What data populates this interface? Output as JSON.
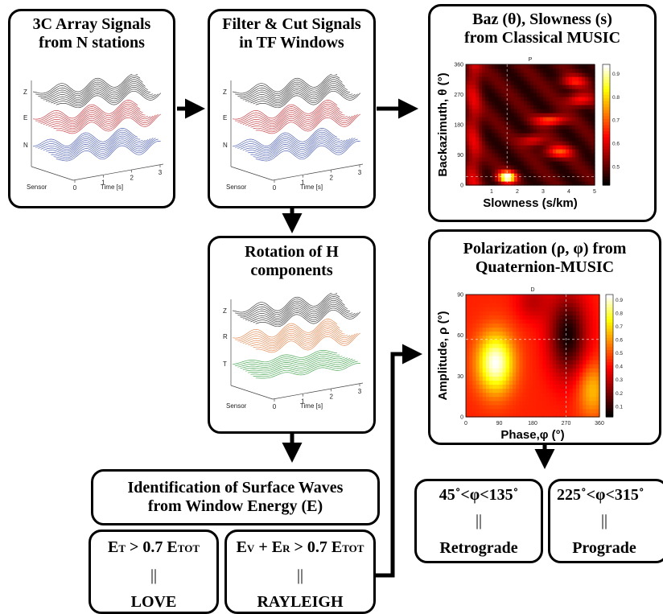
{
  "boxes": {
    "array": {
      "line1": "3C Array Signals",
      "line2": "from N stations"
    },
    "filter": {
      "line1": "Filter & Cut Signals",
      "line2": "in TF Windows"
    },
    "baz": {
      "line1": "Baz (θ), Slowness (s)",
      "line2": "from Classical MUSIC"
    },
    "rotation": {
      "line1": "Rotation of H",
      "line2": "components"
    },
    "polar": {
      "line1": "Polarization  (ρ, φ) from",
      "line2": "Quaternion-MUSIC"
    },
    "ident": {
      "line1": "Identification of Surface Waves",
      "line2": "from Window Energy (E)"
    },
    "love": {
      "cond_parts": [
        "E",
        "T",
        " > 0.7 E",
        "TOT"
      ],
      "sep": "||",
      "result": "LOVE"
    },
    "rayleigh": {
      "cond_parts": [
        "E",
        "V",
        " + E",
        "R",
        " > 0.7 E",
        "TOT"
      ],
      "sep": "||",
      "result": "RAYLEIGH"
    },
    "retro": {
      "range": "45˚<φ<135˚",
      "sep": "||",
      "result": "Retrograde"
    },
    "pro": {
      "range": "225˚<φ<315˚",
      "sep": "||",
      "result": "Prograde"
    }
  },
  "waveforms": {
    "array": {
      "channels": [
        "Z",
        "E",
        "N"
      ],
      "colors": [
        "#222222",
        "#c0262c",
        "#3a4fa8"
      ],
      "ylabel": "Sensor",
      "xlabel": "Time [s]",
      "xticks": [
        "0",
        "1",
        "2",
        "3"
      ]
    },
    "filter": {
      "channels": [
        "Z",
        "E",
        "N"
      ],
      "colors": [
        "#222222",
        "#c0262c",
        "#3a4fa8"
      ],
      "ylabel": "Sensor",
      "xlabel": "Time [s]",
      "xticks": [
        "0",
        "1",
        "2",
        "3"
      ]
    },
    "rotation": {
      "channels": [
        "Z",
        "R",
        "T"
      ],
      "colors": [
        "#222222",
        "#e07a3c",
        "#2e9a3a"
      ],
      "ylabel": "Sensor",
      "xlabel": "Time [s]",
      "xticks": [
        "0",
        "1",
        "2",
        "3"
      ]
    }
  },
  "chart_data": [
    {
      "type": "heatmap",
      "title": "P",
      "xlabel": "Slowness (s/km)",
      "ylabel": "Backazimuth, θ (°)",
      "xlim": [
        0,
        5
      ],
      "ylim": [
        0,
        360
      ],
      "xticks": [
        "1",
        "2",
        "3",
        "4",
        "5"
      ],
      "yticks": [
        "0",
        "90",
        "180",
        "270",
        "360"
      ],
      "colorbar_ticks": [
        "0.5",
        "0.6",
        "0.7",
        "0.8",
        "0.9"
      ],
      "colormap": "hot",
      "peak": {
        "x": 1.6,
        "y": 25
      }
    },
    {
      "type": "heatmap",
      "title": "D",
      "xlabel": "Phase,φ (°)",
      "ylabel": "Amplitude, ρ (°)",
      "xlim": [
        0,
        360
      ],
      "ylim": [
        0,
        90
      ],
      "xticks": [
        "0",
        "90",
        "180",
        "270",
        "360"
      ],
      "yticks": [
        "0",
        "30",
        "60",
        "90"
      ],
      "colorbar_ticks": [
        "0.1",
        "0.2",
        "0.3",
        "0.4",
        "0.5",
        "0.6",
        "0.7",
        "0.8",
        "0.9"
      ],
      "colormap": "hot",
      "peak": {
        "x": 270,
        "y": 57
      }
    }
  ]
}
